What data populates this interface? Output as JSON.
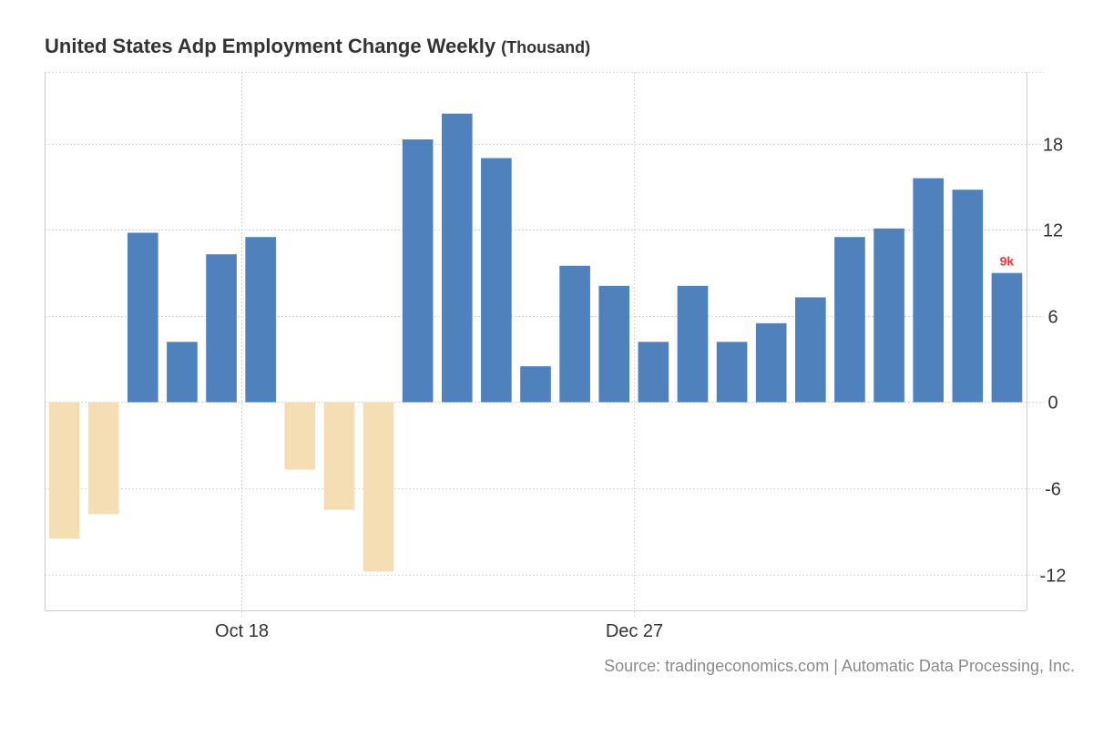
{
  "title": "United States Adp Employment Change Weekly",
  "unit_label": "(Thousand)",
  "source": "Source: tradingeconomics.com | Automatic Data Processing, Inc.",
  "colors": {
    "positive": "#4f81bd",
    "negative": "#f5deb3",
    "last_label": "#e8343b",
    "axis": "#cccccc",
    "grid": "#d9d9d9",
    "tick_text": "#333333"
  },
  "chart_data": {
    "type": "bar",
    "title": "United States Adp Employment Change Weekly",
    "ylabel": "(Thousand)",
    "ylim": [
      -14.5,
      23
    ],
    "yticks": [
      -12,
      -6,
      0,
      6,
      12,
      18
    ],
    "ytick_labels": [
      "-12",
      "-6",
      "0",
      "6",
      "12",
      "18"
    ],
    "xtick_labels": [
      {
        "label": "Oct 18",
        "index": 5
      },
      {
        "label": "Dec 27",
        "index": 15
      }
    ],
    "values": [
      -9.5,
      -7.8,
      11.8,
      4.2,
      10.3,
      11.5,
      -4.7,
      -7.5,
      -11.8,
      18.3,
      20.1,
      17.0,
      2.5,
      9.5,
      8.1,
      4.2,
      8.1,
      4.2,
      5.5,
      7.3,
      11.5,
      12.1,
      15.6,
      14.8,
      9.0
    ],
    "grid": true,
    "last_value_label": "9k"
  }
}
